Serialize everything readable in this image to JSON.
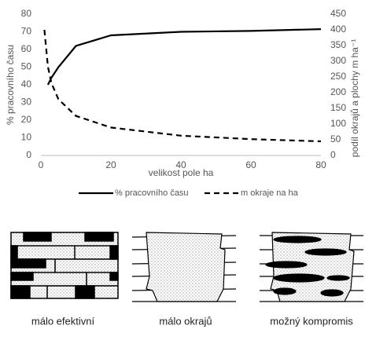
{
  "chart_data": {
    "type": "line",
    "x": [
      1,
      2,
      3,
      5,
      10,
      20,
      40,
      60,
      80
    ],
    "xlabel": "velikost pole ha",
    "ylabel": "% pracovního času",
    "y2label": "podíl okrajů a plochy m ha⁻¹",
    "xlim": [
      0,
      80
    ],
    "xticks": [
      0,
      20,
      40,
      60,
      80
    ],
    "ylim": [
      0,
      80
    ],
    "yticks": [
      0,
      10,
      20,
      30,
      40,
      50,
      60,
      70,
      80
    ],
    "y2lim": [
      0,
      450
    ],
    "y2ticks": [
      0,
      50,
      100,
      150,
      200,
      250,
      300,
      350,
      400,
      450
    ],
    "series": [
      {
        "name": "% pracovního času",
        "color": "#000000",
        "dash": false,
        "values": [
          null,
          40,
          44,
          50,
          62,
          68,
          70,
          70.5,
          71.5
        ]
      },
      {
        "name": "m okraje na ha",
        "color": "#000000",
        "dash": true,
        "axis": "y2",
        "values": [
          400,
          283,
          231,
          179,
          126,
          89,
          63,
          52,
          45
        ]
      }
    ]
  },
  "illustrations": [
    {
      "caption": "málo efektivní"
    },
    {
      "caption": "málo okrajů"
    },
    {
      "caption": "možný kompromis"
    }
  ]
}
